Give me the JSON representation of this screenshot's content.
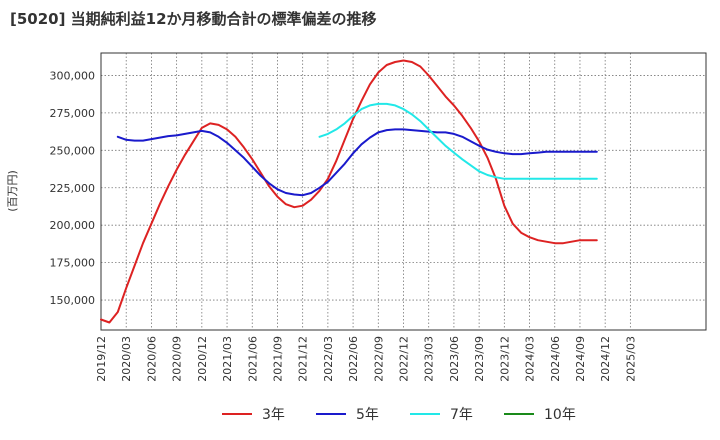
{
  "title": "[5020]  当期純利益12か月移動合計の標準偏差の推移",
  "chart_data": {
    "type": "line",
    "title": "[5020]  当期純利益12か月移動合計の標準偏差の推移",
    "ylabel": "(百万円)",
    "xlabel": "",
    "ylim": [
      130000,
      315000
    ],
    "yticks": [
      150000,
      175000,
      200000,
      225000,
      250000,
      275000,
      300000
    ],
    "ytick_labels": [
      "150,000",
      "175,000",
      "200,000",
      "225,000",
      "250,000",
      "275,000",
      "300,000"
    ],
    "xlim": [
      0,
      72
    ],
    "xticks": [
      0,
      3,
      6,
      9,
      12,
      15,
      18,
      21,
      24,
      27,
      30,
      33,
      36,
      39,
      42,
      45,
      48,
      51,
      54,
      57,
      60,
      63
    ],
    "xtick_labels": [
      "2019/12",
      "2020/03",
      "2020/06",
      "2020/09",
      "2020/12",
      "2021/03",
      "2021/06",
      "2021/09",
      "2021/12",
      "2022/03",
      "2022/06",
      "2022/09",
      "2022/12",
      "2023/03",
      "2023/06",
      "2023/09",
      "2023/12",
      "2024/03",
      "2024/06",
      "2024/09",
      "2024/12",
      "2025/03"
    ],
    "grid": true,
    "legend_position": "bottom",
    "series": [
      {
        "name": "3年",
        "color": "#dd2222",
        "points": [
          [
            0,
            137000
          ],
          [
            1,
            135000
          ],
          [
            2,
            142000
          ],
          [
            3,
            158000
          ],
          [
            4,
            173000
          ],
          [
            5,
            188000
          ],
          [
            6,
            201000
          ],
          [
            7,
            214000
          ],
          [
            8,
            226000
          ],
          [
            9,
            237000
          ],
          [
            10,
            247000
          ],
          [
            11,
            256000
          ],
          [
            12,
            265000
          ],
          [
            13,
            268000
          ],
          [
            14,
            267000
          ],
          [
            15,
            264000
          ],
          [
            16,
            259000
          ],
          [
            17,
            252000
          ],
          [
            18,
            244000
          ],
          [
            19,
            235000
          ],
          [
            20,
            226000
          ],
          [
            21,
            219000
          ],
          [
            22,
            214000
          ],
          [
            23,
            212000
          ],
          [
            24,
            213000
          ],
          [
            25,
            217000
          ],
          [
            26,
            223000
          ],
          [
            27,
            231000
          ],
          [
            28,
            243000
          ],
          [
            29,
            257000
          ],
          [
            30,
            271000
          ],
          [
            31,
            283000
          ],
          [
            32,
            294000
          ],
          [
            33,
            302000
          ],
          [
            34,
            307000
          ],
          [
            35,
            309000
          ],
          [
            36,
            310000
          ],
          [
            37,
            309000
          ],
          [
            38,
            306000
          ],
          [
            39,
            300000
          ],
          [
            40,
            293000
          ],
          [
            41,
            286000
          ],
          [
            42,
            280000
          ],
          [
            43,
            273000
          ],
          [
            44,
            265000
          ],
          [
            45,
            256000
          ],
          [
            46,
            245000
          ],
          [
            47,
            231000
          ],
          [
            48,
            213000
          ],
          [
            49,
            201000
          ],
          [
            50,
            195000
          ],
          [
            51,
            192000
          ],
          [
            52,
            190000
          ],
          [
            53,
            189000
          ],
          [
            54,
            188000
          ],
          [
            55,
            188000
          ],
          [
            56,
            189000
          ],
          [
            57,
            190000
          ],
          [
            58,
            190000
          ],
          [
            59,
            190000
          ]
        ]
      },
      {
        "name": "5年",
        "color": "#1a1acc",
        "points": [
          [
            2,
            259000
          ],
          [
            3,
            257000
          ],
          [
            4,
            256500
          ],
          [
            5,
            256500
          ],
          [
            6,
            257500
          ],
          [
            7,
            258500
          ],
          [
            8,
            259500
          ],
          [
            9,
            260000
          ],
          [
            10,
            261000
          ],
          [
            11,
            262000
          ],
          [
            12,
            263000
          ],
          [
            13,
            262000
          ],
          [
            14,
            259000
          ],
          [
            15,
            255000
          ],
          [
            16,
            250000
          ],
          [
            17,
            245000
          ],
          [
            18,
            239000
          ],
          [
            19,
            233000
          ],
          [
            20,
            228000
          ],
          [
            21,
            224000
          ],
          [
            22,
            221500
          ],
          [
            23,
            220500
          ],
          [
            24,
            220000
          ],
          [
            25,
            221500
          ],
          [
            26,
            225000
          ],
          [
            27,
            229000
          ],
          [
            28,
            235000
          ],
          [
            29,
            241000
          ],
          [
            30,
            248000
          ],
          [
            31,
            254000
          ],
          [
            32,
            258500
          ],
          [
            33,
            262000
          ],
          [
            34,
            263500
          ],
          [
            35,
            264000
          ],
          [
            36,
            264000
          ],
          [
            37,
            263500
          ],
          [
            38,
            263000
          ],
          [
            39,
            262500
          ],
          [
            40,
            262000
          ],
          [
            41,
            262000
          ],
          [
            42,
            261000
          ],
          [
            43,
            259000
          ],
          [
            44,
            256000
          ],
          [
            45,
            253000
          ],
          [
            46,
            250500
          ],
          [
            47,
            249000
          ],
          [
            48,
            248000
          ],
          [
            49,
            247500
          ],
          [
            50,
            247500
          ],
          [
            51,
            248000
          ],
          [
            52,
            248500
          ],
          [
            53,
            249000
          ],
          [
            54,
            249000
          ],
          [
            55,
            249000
          ],
          [
            56,
            249000
          ],
          [
            57,
            249000
          ],
          [
            58,
            249000
          ],
          [
            59,
            249000
          ]
        ]
      },
      {
        "name": "7年",
        "color": "#22e8e8",
        "points": [
          [
            26,
            259000
          ],
          [
            27,
            261000
          ],
          [
            28,
            264000
          ],
          [
            29,
            268000
          ],
          [
            30,
            273000
          ],
          [
            31,
            277500
          ],
          [
            32,
            280000
          ],
          [
            33,
            281000
          ],
          [
            34,
            281000
          ],
          [
            35,
            280000
          ],
          [
            36,
            277500
          ],
          [
            37,
            274000
          ],
          [
            38,
            269500
          ],
          [
            39,
            264000
          ],
          [
            40,
            258500
          ],
          [
            41,
            253000
          ],
          [
            42,
            248500
          ],
          [
            43,
            244000
          ],
          [
            44,
            240000
          ],
          [
            45,
            236000
          ],
          [
            46,
            233500
          ],
          [
            47,
            232000
          ],
          [
            48,
            231000
          ],
          [
            49,
            231000
          ],
          [
            50,
            231000
          ],
          [
            51,
            231000
          ],
          [
            52,
            231000
          ],
          [
            53,
            231000
          ],
          [
            54,
            231000
          ],
          [
            55,
            231000
          ],
          [
            56,
            231000
          ],
          [
            57,
            231000
          ],
          [
            58,
            231000
          ],
          [
            59,
            231000
          ]
        ]
      },
      {
        "name": "10年",
        "color": "#1a8a1a",
        "points": []
      }
    ]
  }
}
